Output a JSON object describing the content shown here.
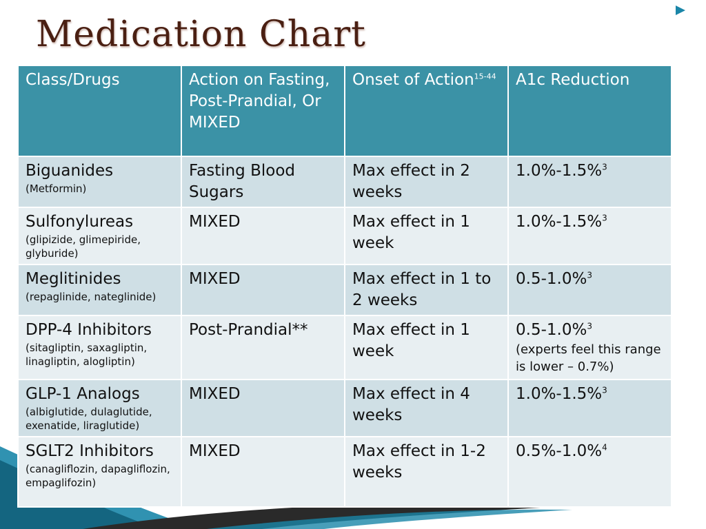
{
  "title": "Medication Chart",
  "colors": {
    "header": "#3b92a6",
    "row_odd": "#cfdfe5",
    "row_even": "#e8eff2",
    "title": "#4a1f12",
    "accent": "#1a86a8"
  },
  "icons": [
    "bullet-arrow-icon"
  ],
  "table": {
    "headers": [
      {
        "text": "Class/Drugs",
        "sup": ""
      },
      {
        "text": "Action on Fasting, Post-Prandial, Or MIXED",
        "sup": ""
      },
      {
        "text": "Onset of Action",
        "sup": "15-44"
      },
      {
        "text": "A1c Reduction",
        "sup": ""
      }
    ],
    "rows": [
      {
        "class": "Biguanides",
        "examples": "(Metformin)",
        "action": "Fasting Blood Sugars",
        "onset": "Max effect in 2 weeks",
        "a1c": "1.0%-1.5%",
        "a1c_sup": "3",
        "note": ""
      },
      {
        "class": "Sulfonylureas",
        "examples": "(glipizide, glimepiride, glyburide)",
        "action": "MIXED",
        "onset": "Max effect in 1 week",
        "a1c": "1.0%-1.5%",
        "a1c_sup": "3",
        "note": ""
      },
      {
        "class": "Meglitinides",
        "examples": "(repaglinide, nateglinide)",
        "action": "MIXED",
        "onset": "Max effect in 1 to 2 weeks",
        "a1c": "0.5-1.0%",
        "a1c_sup": "3",
        "note": ""
      },
      {
        "class": "DPP-4 Inhibitors",
        "examples": "(sitagliptin, saxagliptin, linagliptin, alogliptin)",
        "action": "Post-Prandial**",
        "onset": "Max effect in 1 week",
        "a1c": "0.5-1.0%",
        "a1c_sup": "3",
        "note": "(experts feel this range is lower – 0.7%)"
      },
      {
        "class": "GLP-1 Analogs",
        "examples": "(albiglutide, dulaglutide, exenatide, liraglutide)",
        "action": "MIXED",
        "onset": "Max effect in 4 weeks",
        "a1c": "1.0%-1.5%",
        "a1c_sup": "3",
        "note": ""
      },
      {
        "class": "SGLT2 Inhibitors",
        "examples": "(canagliflozin, dapagliflozin, empaglifozin)",
        "action": "MIXED",
        "onset": "Max effect in 1-2 weeks",
        "a1c": "0.5%-1.0%",
        "a1c_sup": "4",
        "note": ""
      }
    ]
  }
}
